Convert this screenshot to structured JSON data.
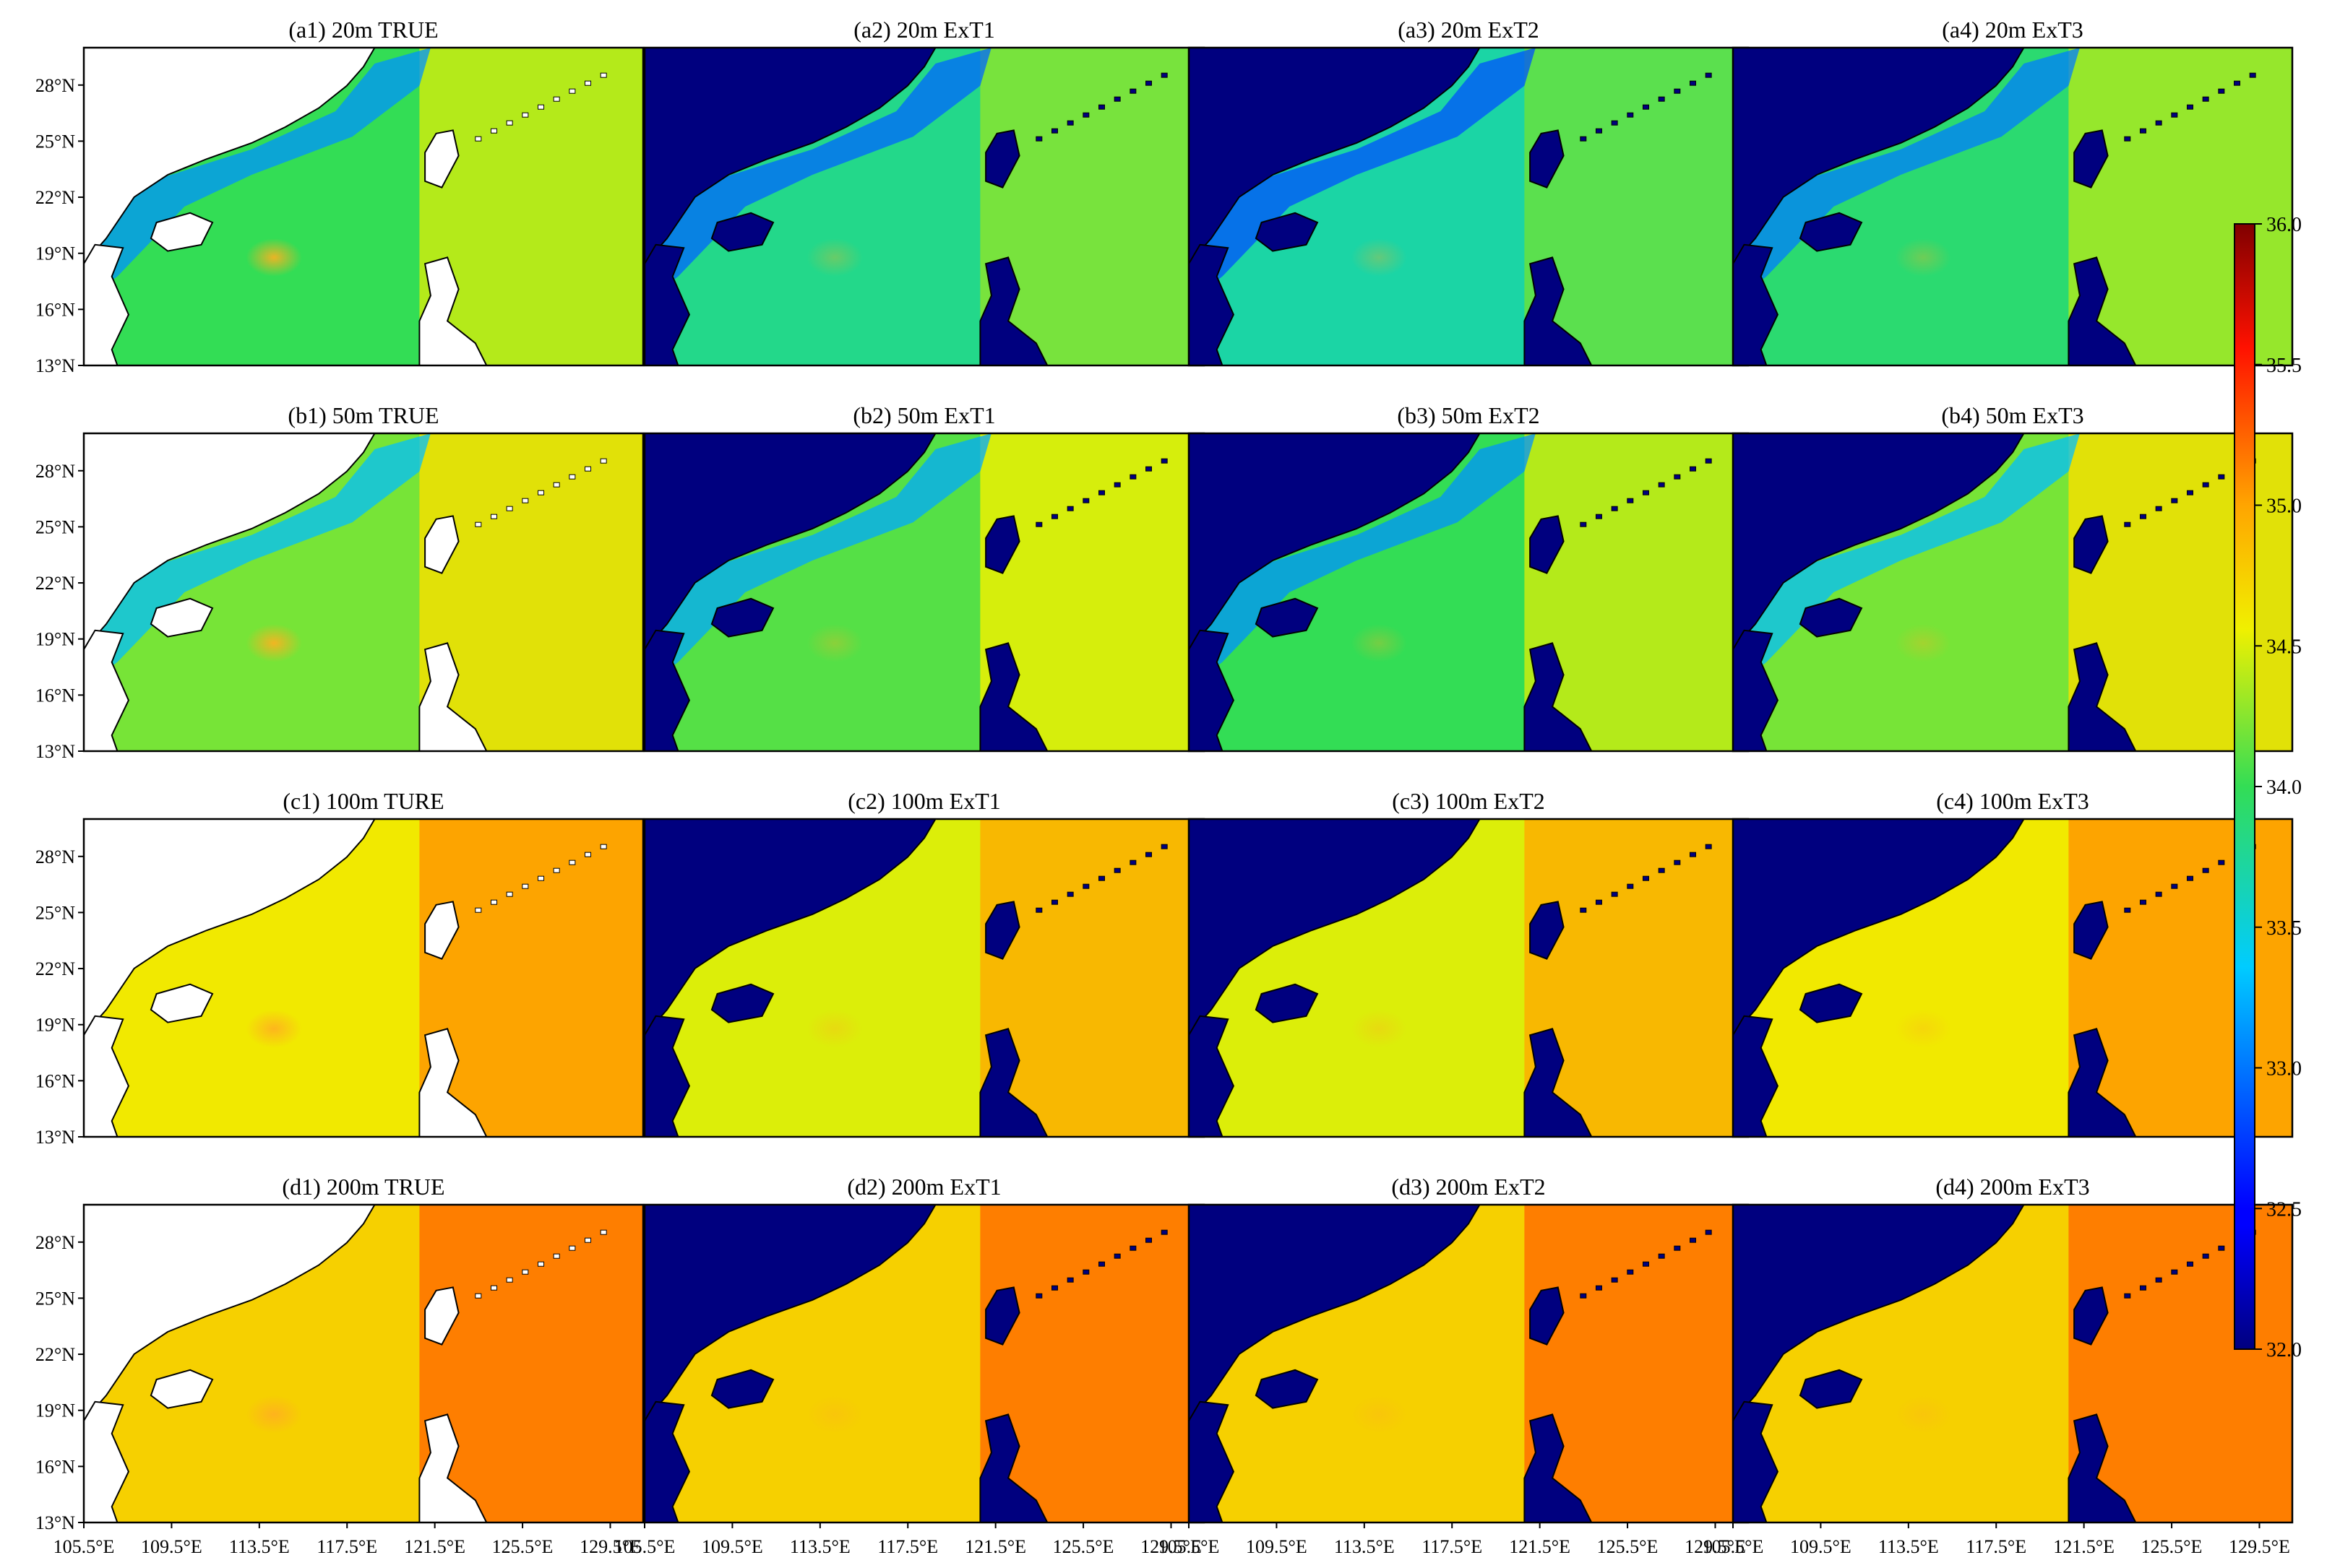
{
  "chart_data": {
    "type": "heatmap",
    "grid": {
      "rows": 4,
      "cols": 4
    },
    "colormap": "jet",
    "value_range": [
      32.0,
      36.0
    ],
    "colorbar": {
      "ticks": [
        "32.0",
        "32.5",
        "33.0",
        "33.5",
        "34.0",
        "34.5",
        "35.0",
        "35.5",
        "36.0"
      ]
    },
    "axes": {
      "x_ticks": [
        "105.5°E",
        "109.5°E",
        "113.5°E",
        "117.5°E",
        "121.5°E",
        "125.5°E",
        "129.5°E"
      ],
      "y_ticks": [
        "28°N",
        "25°N",
        "22°N",
        "19°N",
        "16°N",
        "13°N"
      ],
      "xlim": [
        105.5,
        131.0
      ],
      "ylim": [
        13.0,
        30.0
      ]
    },
    "rows": [
      {
        "depth": "20m",
        "mean_values": [
          34.0,
          33.8,
          33.7,
          33.9
        ],
        "titles": [
          "(a1) 20m TRUE",
          "(a2) 20m ExT1",
          "(a3) 20m ExT2",
          "(a4) 20m ExT3"
        ]
      },
      {
        "depth": "50m",
        "mean_values": [
          34.2,
          34.1,
          34.0,
          34.2
        ],
        "titles": [
          "(b1) 50m TRUE",
          "(b2) 50m ExT1",
          "(b3) 50m ExT2",
          "(b4) 50m ExT3"
        ]
      },
      {
        "depth": "100m",
        "mean_values": [
          34.6,
          34.5,
          34.5,
          34.6
        ],
        "titles": [
          "(c1) 100m TURE",
          "(c2) 100m ExT1",
          "(c3) 100m ExT2",
          "(c4) 100m ExT3"
        ]
      },
      {
        "depth": "200m",
        "mean_values": [
          34.75,
          34.75,
          34.75,
          34.75
        ],
        "titles": [
          "(d1) 200m TRUE",
          "(d2) 200m ExT1",
          "(d3) 200m ExT2",
          "(d4) 200m ExT3"
        ]
      }
    ],
    "background_colors": {
      "true_land": "#ffffff",
      "model_land": "#00007f"
    }
  }
}
